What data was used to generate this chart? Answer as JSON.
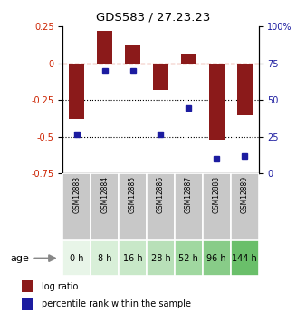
{
  "title": "GDS583 / 27.23.23",
  "samples": [
    "GSM12883",
    "GSM12884",
    "GSM12885",
    "GSM12886",
    "GSM12887",
    "GSM12888",
    "GSM12889"
  ],
  "age_labels": [
    "0 h",
    "8 h",
    "16 h",
    "28 h",
    "52 h",
    "96 h",
    "144 h"
  ],
  "log_ratio": [
    -0.38,
    0.22,
    0.12,
    -0.18,
    0.07,
    -0.52,
    -0.35
  ],
  "percentile_rank": [
    27,
    70,
    70,
    27,
    45,
    10,
    12
  ],
  "bar_color": "#8B1A1A",
  "dot_color": "#1C1CA0",
  "ylim_left": [
    -0.75,
    0.25
  ],
  "yticks_left": [
    0.25,
    0.0,
    -0.25,
    -0.5,
    -0.75
  ],
  "yticks_right": [
    100,
    75,
    50,
    25,
    0
  ],
  "dotted_lines": [
    -0.25,
    -0.5
  ],
  "age_colors": [
    "#e8f5e8",
    "#d8efd8",
    "#c8e8c8",
    "#b8e0b8",
    "#a0d8a0",
    "#88cc88",
    "#6abf6a"
  ],
  "sample_bg_color": "#c8c8c8",
  "bar_width": 0.55
}
